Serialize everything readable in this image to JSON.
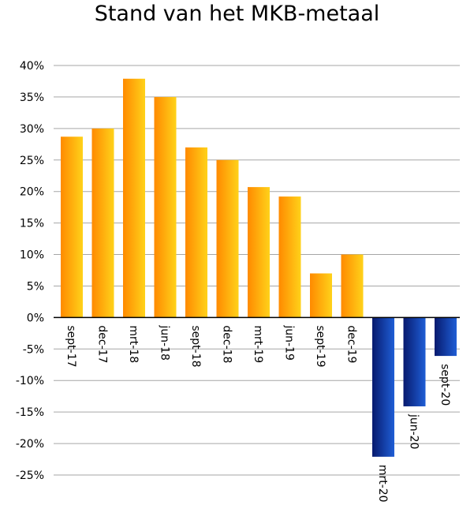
{
  "chart_data": {
    "type": "bar",
    "title": "Stand van het MKB-metaal",
    "xlabel": "",
    "ylabel": "",
    "categories": [
      "sept-17",
      "dec-17",
      "mrt-18",
      "jun-18",
      "sept-18",
      "dec-18",
      "mrt-19",
      "jun-19",
      "sept-19",
      "dec-19",
      "mrt-20",
      "jun-20",
      "sept-20"
    ],
    "values": [
      28.7,
      30,
      37.9,
      35,
      27,
      25,
      20.7,
      19.2,
      7,
      10,
      -22.1,
      -14.1,
      -6.1
    ],
    "unit": "%",
    "ylim": [
      -25,
      40
    ],
    "yticks": [
      40,
      35,
      30,
      25,
      20,
      15,
      10,
      5,
      0,
      -5,
      -10,
      -15,
      -20,
      -25
    ],
    "ytick_labels": [
      "40%",
      "35%",
      "30%",
      "25%",
      "20%",
      "15%",
      "10%",
      "5%",
      "0%",
      "-5%",
      "-10%",
      "-15%",
      "-20%",
      "-25%"
    ],
    "grid": true,
    "legend": "none",
    "colors": {
      "positive_light": "#ffd21a",
      "positive_dark": "#ff8a00",
      "negative_light": "#1f5ed6",
      "negative_dark": "#071a6e",
      "grid": "#a6a6a6"
    }
  }
}
